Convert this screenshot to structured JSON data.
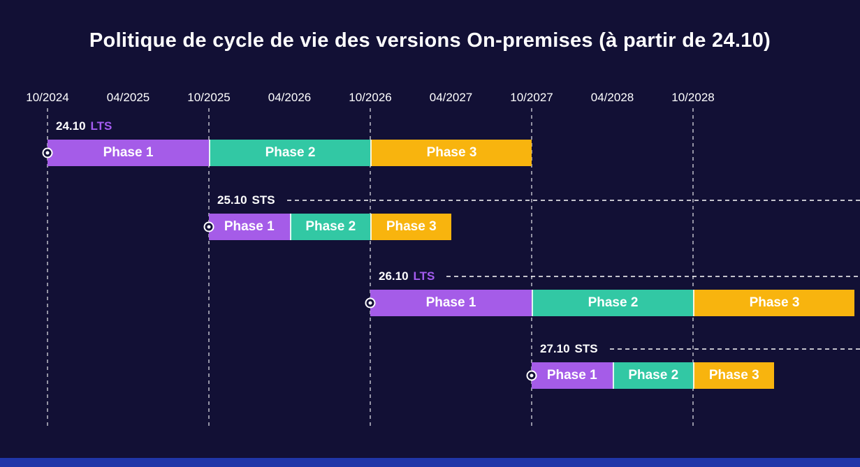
{
  "title": "Politique de cycle de vie des versions On-premises (à partir de 24.10)",
  "colors": {
    "background": "#121035",
    "accent_footer": "#2036a8",
    "text": "#ffffff",
    "lts": "#a45cf0",
    "sts": "#ffffff",
    "gridline": "rgba(255,255,255,0.55)",
    "phases": {
      "Phase 1": "#a55ce8",
      "Phase 2": "#32c8a4",
      "Phase 3": "#f8b40e"
    }
  },
  "chart_data": {
    "type": "gantt",
    "title": "Politique de cycle de vie des versions On-premises (à partir de 24.10)",
    "x_ticks": [
      "10/2024",
      "04/2025",
      "10/2025",
      "04/2026",
      "10/2026",
      "04/2027",
      "10/2027",
      "04/2028",
      "10/2028"
    ],
    "gridlines": [
      "10/2024",
      "10/2025",
      "10/2026",
      "10/2027",
      "10/2028"
    ],
    "rows": [
      {
        "version": "24.10",
        "channel": "LTS",
        "dashed_line": false,
        "start_marker": true,
        "phases": [
          {
            "name": "Phase 1",
            "start": "10/2024",
            "end": "10/2025"
          },
          {
            "name": "Phase 2",
            "start": "10/2025",
            "end": "10/2026"
          },
          {
            "name": "Phase 3",
            "start": "10/2026",
            "end": "10/2027"
          }
        ]
      },
      {
        "version": "25.10",
        "channel": "STS",
        "dashed_line": true,
        "start_marker": true,
        "phases": [
          {
            "name": "Phase 1",
            "start": "10/2025",
            "end": "04/2026"
          },
          {
            "name": "Phase 2",
            "start": "04/2026",
            "end": "10/2026"
          },
          {
            "name": "Phase 3",
            "start": "10/2026",
            "end": "04/2027"
          }
        ]
      },
      {
        "version": "26.10",
        "channel": "LTS",
        "dashed_line": true,
        "start_marker": true,
        "phases": [
          {
            "name": "Phase 1",
            "start": "10/2026",
            "end": "10/2027"
          },
          {
            "name": "Phase 2",
            "start": "10/2027",
            "end": "10/2028"
          },
          {
            "name": "Phase 3",
            "start": "10/2028",
            "end": "10/2029"
          }
        ]
      },
      {
        "version": "27.10",
        "channel": "STS",
        "dashed_line": true,
        "start_marker": true,
        "phases": [
          {
            "name": "Phase 1",
            "start": "10/2027",
            "end": "04/2028"
          },
          {
            "name": "Phase 2",
            "start": "04/2028",
            "end": "10/2028"
          },
          {
            "name": "Phase 3",
            "start": "10/2028",
            "end": "04/2029"
          }
        ]
      }
    ]
  }
}
